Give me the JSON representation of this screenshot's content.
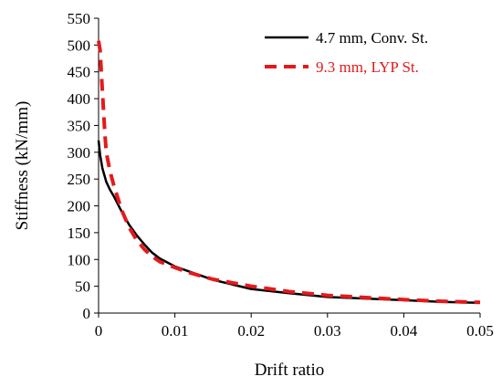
{
  "chart_data": {
    "type": "line",
    "title": "",
    "xlabel": "Drift ratio",
    "ylabel": "Stiffness (kN/mm)",
    "xlim": [
      0,
      0.05
    ],
    "ylim": [
      0,
      550
    ],
    "xticks": [
      0,
      0.01,
      0.02,
      0.03,
      0.04,
      0.05
    ],
    "xtick_labels": [
      "0",
      "0.01",
      "0.02",
      "0.03",
      "0.04",
      "0.05"
    ],
    "yticks": [
      0,
      50,
      100,
      150,
      200,
      250,
      300,
      350,
      400,
      450,
      500,
      550
    ],
    "ytick_labels": [
      "0",
      "50",
      "100",
      "150",
      "200",
      "250",
      "300",
      "350",
      "400",
      "450",
      "500",
      "550"
    ],
    "grid": false,
    "legend_position": "top-right",
    "series": [
      {
        "name": "4.7 mm, Conv. St.",
        "color": "#000000",
        "style": "solid",
        "x": [
          0,
          0.0002,
          0.0005,
          0.001,
          0.0015,
          0.002,
          0.003,
          0.004,
          0.005,
          0.006,
          0.007,
          0.008,
          0.01,
          0.012,
          0.015,
          0.02,
          0.025,
          0.03,
          0.035,
          0.04,
          0.045,
          0.05
        ],
        "y": [
          322,
          295,
          270,
          245,
          230,
          218,
          190,
          165,
          145,
          128,
          113,
          102,
          87,
          77,
          62,
          45,
          37,
          30,
          27,
          24,
          21,
          19
        ]
      },
      {
        "name": "9.3 mm, LYP St.",
        "color": "#e31a1c",
        "style": "dashed",
        "x": [
          0,
          0.0002,
          0.0004,
          0.0006,
          0.0008,
          0.001,
          0.0015,
          0.002,
          0.003,
          0.004,
          0.005,
          0.006,
          0.007,
          0.008,
          0.01,
          0.012,
          0.015,
          0.02,
          0.025,
          0.03,
          0.035,
          0.04,
          0.045,
          0.05
        ],
        "y": [
          508,
          490,
          440,
          390,
          340,
          300,
          265,
          238,
          193,
          160,
          136,
          119,
          106,
          96,
          85,
          75,
          63,
          50,
          40,
          33,
          29,
          25,
          22,
          20
        ]
      }
    ]
  }
}
